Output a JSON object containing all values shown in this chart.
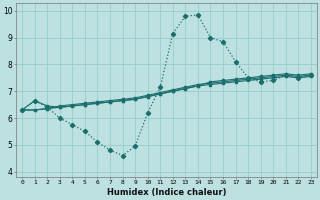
{
  "xlabel": "Humidex (Indice chaleur)",
  "bg_color": "#bde0e0",
  "grid_color": "#99cccc",
  "line_color": "#1a6e6e",
  "xlim": [
    -0.5,
    23.5
  ],
  "ylim": [
    3.8,
    10.3
  ],
  "xticks": [
    0,
    1,
    2,
    3,
    4,
    5,
    6,
    7,
    8,
    9,
    10,
    11,
    12,
    13,
    14,
    15,
    16,
    17,
    18,
    19,
    20,
    21,
    22,
    23
  ],
  "yticks": [
    4,
    5,
    6,
    7,
    8,
    9,
    10
  ],
  "series_wavy": [
    6.3,
    6.65,
    6.4,
    6.0,
    5.75,
    5.5,
    5.1,
    4.8,
    4.6,
    4.95,
    6.2,
    7.15,
    9.15,
    9.8,
    9.85,
    9.0,
    8.85,
    8.1,
    7.5,
    7.35,
    7.4,
    7.6,
    7.5,
    7.6
  ],
  "series_line1": [
    6.3,
    6.3,
    6.35,
    6.4,
    6.45,
    6.5,
    6.55,
    6.6,
    6.65,
    6.7,
    6.8,
    6.9,
    7.0,
    7.1,
    7.2,
    7.25,
    7.3,
    7.35,
    7.4,
    7.45,
    7.5,
    7.55,
    7.5,
    7.55
  ],
  "series_line2": [
    6.3,
    6.3,
    6.35,
    6.45,
    6.5,
    6.55,
    6.6,
    6.65,
    6.7,
    6.75,
    6.85,
    6.95,
    7.05,
    7.15,
    7.25,
    7.3,
    7.35,
    7.4,
    7.45,
    7.5,
    7.55,
    7.6,
    7.55,
    7.6
  ],
  "series_line3": [
    6.3,
    6.65,
    6.45,
    6.4,
    6.45,
    6.5,
    6.55,
    6.6,
    6.65,
    6.7,
    6.8,
    6.9,
    7.0,
    7.1,
    7.2,
    7.35,
    7.4,
    7.45,
    7.5,
    7.55,
    7.6,
    7.65,
    7.6,
    7.65
  ]
}
